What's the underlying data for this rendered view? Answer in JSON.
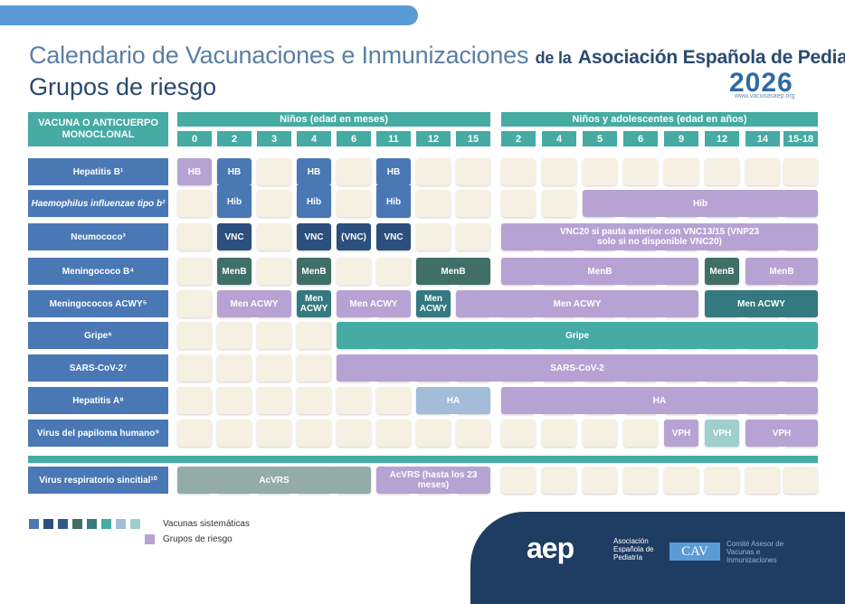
{
  "header": {
    "title_main": "Calendario de Vacunaciones e Inmunizaciones",
    "title_de": "de la",
    "title_org": "Asociación Española de Pediatría",
    "subtitle": "Grupos de riesgo",
    "year": "2026",
    "url": "www.vacunasaep.org"
  },
  "table": {
    "vaccine_header": "VACUNA O ANTICUERPO MONOCLONAL",
    "group_months": "Niños (edad en meses)",
    "group_years": "Niños y adolescentes (edad en años)",
    "ages_months": [
      "0",
      "2",
      "3",
      "4",
      "6",
      "11",
      "12",
      "15"
    ],
    "ages_years": [
      "2",
      "4",
      "5",
      "6",
      "9",
      "12",
      "14",
      "15-18"
    ],
    "rows": [
      {
        "label": "Hepatitis B¹"
      },
      {
        "label": "Haemophilus influenzae tipo b²"
      },
      {
        "label": "Neumococo³"
      },
      {
        "label": "Meningococo B⁴"
      },
      {
        "label": "Meningococos ACWY⁵"
      },
      {
        "label": "Gripe⁶"
      },
      {
        "label": "SARS-CoV-2⁷"
      },
      {
        "label": "Hepatitis A⁸"
      },
      {
        "label": "Virus del papiloma humano⁹"
      },
      {
        "label": "Virus respiratorio sincitial¹⁰"
      }
    ],
    "entries": {
      "hb": "HB",
      "hib": "Hib",
      "vnc": "VNC",
      "vnc_paren": "(VNC)",
      "vnc_note": "VNC20 si pauta anterior con VNC13/15 (VNP23 solo si no disponible VNC20)",
      "menb": "MenB",
      "menacwy": "Men ACWY",
      "gripe": "Gripe",
      "sars": "SARS-CoV-2",
      "ha": "HA",
      "vph": "VPH",
      "acvrs": "AcVRS",
      "acvrs_ext": "AcVRS (hasta los 23 meses)"
    }
  },
  "legend": {
    "systematic": "Vacunas sistemáticas",
    "risk": "Grupos de riesgo",
    "swatches": [
      "#4a78b5",
      "#2c4f7e",
      "#305a89",
      "#3f6f67",
      "#34797f",
      "#45aba3",
      "#a3bcd8",
      "#9fcfcc"
    ],
    "risk_color": "#b6a3d3"
  },
  "footer": {
    "aep_logo": "aep",
    "aep_name": "Asociación Española de Pediatría",
    "cav_logo": "CAV",
    "cav_name": "Comité Asesor de Vacunas e Inmunizaciones"
  }
}
